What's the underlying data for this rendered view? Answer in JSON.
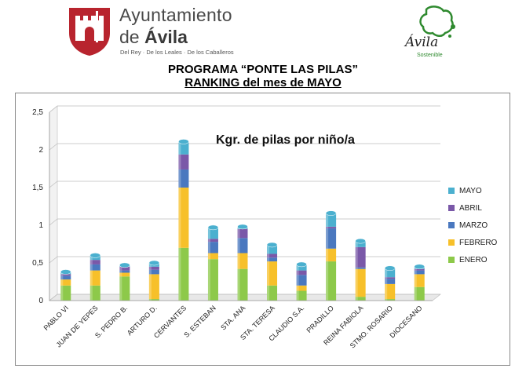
{
  "header": {
    "org_line1": "Ayuntamiento",
    "org_line2_prefix": "de ",
    "org_line2_city": "Ávila",
    "tagline": "Del Rey · De los Leales · De los Caballeros",
    "right_logo_text": "Ávila",
    "right_logo_sub": "Sostenible"
  },
  "titles": {
    "line1": "PROGRAMA “PONTE LAS PILAS”",
    "line2": "RANKING del mes de MAYO"
  },
  "colors": {
    "ENERO": "#8dc94a",
    "FEBRERO": "#f7c02a",
    "MARZO": "#4a78bf",
    "ABRIL": "#7a58a8",
    "MAYO": "#4bb0cf"
  },
  "chart_data": {
    "type": "bar",
    "stacked": true,
    "annotation": "Kgr. de pilas por niño/a",
    "ylim": [
      0,
      2.5
    ],
    "yticks": [
      "0",
      "0,5",
      "1",
      "1,5",
      "2",
      "2,5"
    ],
    "ytick_values": [
      0,
      0.5,
      1,
      1.5,
      2,
      2.5
    ],
    "grid": true,
    "legend_position": "right",
    "categories": [
      "PABLO VI",
      "JUAN DE YEPES",
      "S. PEDRO B.",
      "ARTURO D.",
      "CERVANTES",
      "S. ESTEBAN",
      "STA. ANA",
      "STA. TERESA",
      "CLAUDIO S.A.",
      "PRADILLO",
      "REINA FABIOLA",
      "STMO. ROSARIO",
      "DIOCESANO"
    ],
    "series": [
      {
        "name": "ENERO",
        "values": [
          0.2,
          0.2,
          0.32,
          0.02,
          0.7,
          0.55,
          0.42,
          0.2,
          0.13,
          0.52,
          0.05,
          0.02,
          0.18
        ]
      },
      {
        "name": "FEBRERO",
        "values": [
          0.08,
          0.2,
          0.05,
          0.33,
          0.8,
          0.08,
          0.21,
          0.32,
          0.07,
          0.17,
          0.37,
          0.2,
          0.17
        ]
      },
      {
        "name": "MARZO",
        "values": [
          0.05,
          0.08,
          0.03,
          0.06,
          0.24,
          0.15,
          0.2,
          0.05,
          0.14,
          0.27,
          0.02,
          0.07,
          0.05
        ]
      },
      {
        "name": "ABRIL",
        "values": [
          0.02,
          0.06,
          0.05,
          0.04,
          0.2,
          0.04,
          0.12,
          0.05,
          0.06,
          0.02,
          0.27,
          0.02,
          0.02
        ]
      },
      {
        "name": "MAYO",
        "values": [
          0.03,
          0.06,
          0.02,
          0.05,
          0.17,
          0.15,
          0.03,
          0.12,
          0.08,
          0.18,
          0.08,
          0.12,
          0.03
        ]
      }
    ],
    "legend": [
      "MAYO",
      "ABRIL",
      "MARZO",
      "FEBRERO",
      "ENERO"
    ]
  }
}
